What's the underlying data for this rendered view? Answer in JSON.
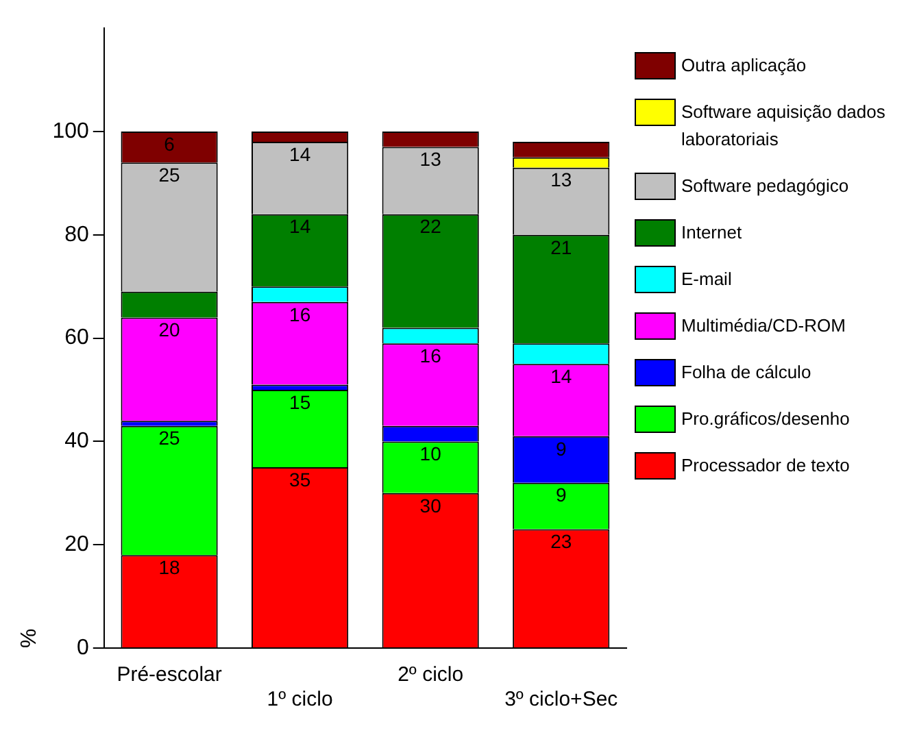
{
  "chart_data": {
    "type": "bar",
    "stacked": true,
    "ylabel": "%",
    "categories": [
      "Pré-escolar",
      "1º ciclo",
      "2º ciclo",
      "3º ciclo+Sec"
    ],
    "ylim": [
      0,
      120
    ],
    "yticks": [
      0,
      20,
      40,
      60,
      80,
      100
    ],
    "grid": false,
    "legend": "right",
    "series": [
      {
        "name": "Processador de texto",
        "color": "#ff0000",
        "values": [
          18,
          35,
          30,
          23
        ],
        "value_labels": [
          "18",
          "35",
          "30",
          "23"
        ]
      },
      {
        "name": "Pro.gráficos/desenho",
        "color": "#00ff00",
        "values": [
          25,
          15,
          10,
          9
        ],
        "value_labels": [
          "25",
          "15",
          "10",
          "9"
        ]
      },
      {
        "name": "Folha de cálculo",
        "color": "#0000ff",
        "values": [
          1,
          1,
          3,
          9
        ],
        "value_labels": [
          null,
          null,
          null,
          "9"
        ]
      },
      {
        "name": "Multimédia/CD-ROM",
        "color": "#ff00ff",
        "values": [
          20,
          16,
          16,
          14
        ],
        "value_labels": [
          "20",
          "16",
          "16",
          "14"
        ]
      },
      {
        "name": "E-mail",
        "color": "#00ffff",
        "values": [
          0,
          3,
          3,
          4
        ],
        "value_labels": [
          null,
          null,
          null,
          null
        ]
      },
      {
        "name": "Internet",
        "color": "#007f00",
        "values": [
          5,
          14,
          22,
          21
        ],
        "value_labels": [
          null,
          "14",
          "22",
          "21"
        ]
      },
      {
        "name": "Software pedagógico",
        "color": "#c0c0c0",
        "values": [
          25,
          14,
          13,
          13
        ],
        "value_labels": [
          "25",
          "14",
          "13",
          "13"
        ]
      },
      {
        "name": "Software aquisição dados laboratoriais",
        "color": "#ffff00",
        "values": [
          0,
          0,
          0,
          2
        ],
        "value_labels": [
          null,
          null,
          null,
          null
        ]
      },
      {
        "name": "Outra aplicação",
        "color": "#7f0000",
        "values": [
          6,
          2,
          3,
          3
        ],
        "value_labels": [
          "6",
          null,
          null,
          null
        ]
      }
    ]
  }
}
